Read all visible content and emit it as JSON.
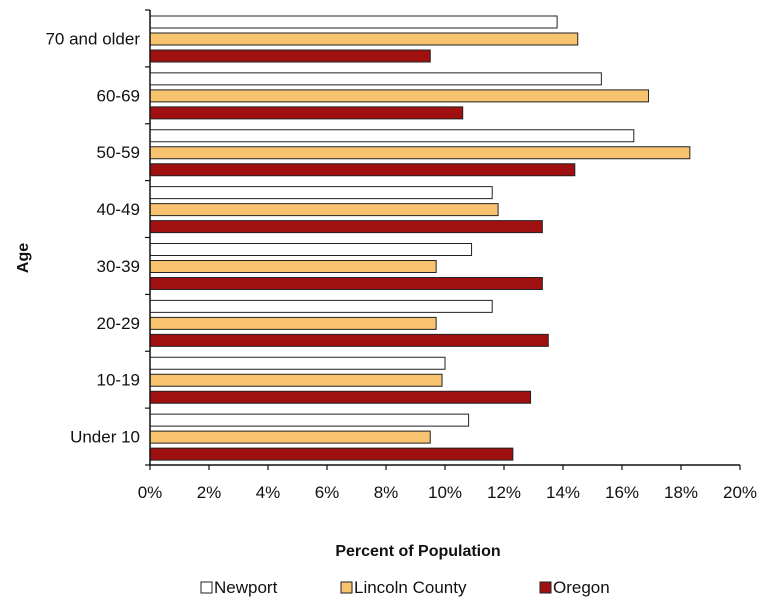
{
  "chart_data": {
    "type": "bar",
    "orientation": "horizontal",
    "categories": [
      "70 and older",
      "60-69",
      "50-59",
      "40-49",
      "30-39",
      "20-29",
      "10-19",
      "Under 10"
    ],
    "series": [
      {
        "name": "Newport",
        "color": "#ffffff",
        "values": [
          13.8,
          15.3,
          16.4,
          11.6,
          10.9,
          11.6,
          10.0,
          10.8
        ]
      },
      {
        "name": "Lincoln County",
        "color": "#f7c36f",
        "values": [
          14.5,
          16.9,
          18.3,
          11.8,
          9.7,
          9.7,
          9.9,
          9.5
        ]
      },
      {
        "name": "Oregon",
        "color": "#a01010",
        "values": [
          9.5,
          10.6,
          14.4,
          13.3,
          13.3,
          13.5,
          12.9,
          12.3
        ]
      }
    ],
    "xlabel": "Percent of Population",
    "ylabel": "Age",
    "xlim": [
      0,
      20
    ],
    "x_ticks": [
      "0%",
      "2%",
      "4%",
      "6%",
      "8%",
      "10%",
      "12%",
      "14%",
      "16%",
      "18%",
      "20%"
    ],
    "grid": false,
    "legend_position": "bottom"
  }
}
